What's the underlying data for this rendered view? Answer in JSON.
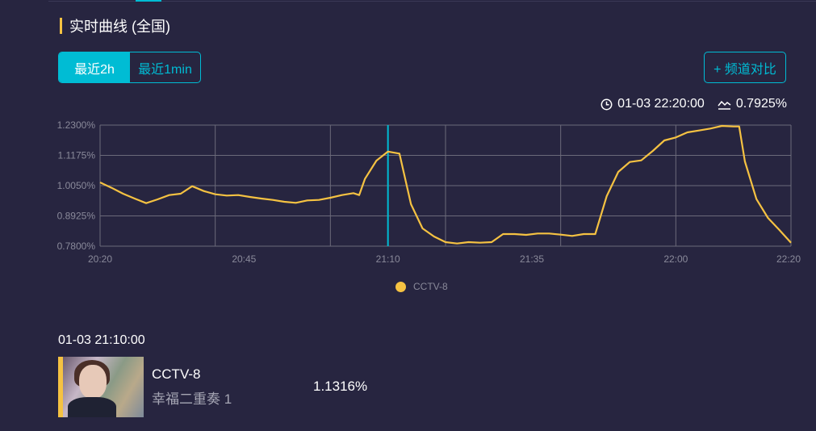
{
  "header": {
    "title": "实时曲线 (全国)"
  },
  "range_tabs": [
    {
      "label": "最近2h",
      "active": true
    },
    {
      "label": "最近1min",
      "active": false
    }
  ],
  "compare_button": "+ 频道对比",
  "current": {
    "time": "01-03 22:20:00",
    "value": "0.7925%"
  },
  "colors": {
    "accent": "#00bcd4",
    "series": "#f5c242",
    "background": "#272540"
  },
  "chart_data": {
    "type": "line",
    "x_unit": "time",
    "x_start": "20:20",
    "x_end": "22:20",
    "x_ticks": [
      "20:20",
      "20:45",
      "21:10",
      "21:35",
      "22:00",
      "22:20"
    ],
    "y_ticks": [
      "0.7800%",
      "0.8925%",
      "1.0050%",
      "1.1175%",
      "1.2300%"
    ],
    "ylim": [
      0.78,
      1.23
    ],
    "grid": true,
    "legend": "bottom-center",
    "cursor_time": "21:10",
    "series": [
      {
        "name": "CCTV-8",
        "points": [
          [
            "20:20",
            1.017
          ],
          [
            "20:22",
            0.997
          ],
          [
            "20:24",
            0.975
          ],
          [
            "20:26",
            0.957
          ],
          [
            "20:28",
            0.94
          ],
          [
            "20:30",
            0.954
          ],
          [
            "20:32",
            0.97
          ],
          [
            "20:34",
            0.975
          ],
          [
            "20:36",
            1.003
          ],
          [
            "20:38",
            0.985
          ],
          [
            "20:40",
            0.973
          ],
          [
            "20:42",
            0.968
          ],
          [
            "20:44",
            0.97
          ],
          [
            "20:46",
            0.963
          ],
          [
            "20:48",
            0.957
          ],
          [
            "20:50",
            0.952
          ],
          [
            "20:52",
            0.945
          ],
          [
            "20:54",
            0.941
          ],
          [
            "20:56",
            0.95
          ],
          [
            "20:58",
            0.952
          ],
          [
            "21:00",
            0.96
          ],
          [
            "21:02",
            0.97
          ],
          [
            "21:04",
            0.977
          ],
          [
            "21:05",
            0.97
          ],
          [
            "21:06",
            1.03
          ],
          [
            "21:08",
            1.098
          ],
          [
            "21:10",
            1.1316
          ],
          [
            "21:12",
            1.124
          ],
          [
            "21:14",
            0.936
          ],
          [
            "21:16",
            0.846
          ],
          [
            "21:18",
            0.816
          ],
          [
            "21:20",
            0.795
          ],
          [
            "21:22",
            0.79
          ],
          [
            "21:24",
            0.795
          ],
          [
            "21:26",
            0.793
          ],
          [
            "21:28",
            0.795
          ],
          [
            "21:30",
            0.825
          ],
          [
            "21:32",
            0.825
          ],
          [
            "21:34",
            0.822
          ],
          [
            "21:36",
            0.827
          ],
          [
            "21:38",
            0.827
          ],
          [
            "21:40",
            0.823
          ],
          [
            "21:42",
            0.818
          ],
          [
            "21:44",
            0.825
          ],
          [
            "21:46",
            0.825
          ],
          [
            "21:48",
            0.966
          ],
          [
            "21:50",
            1.056
          ],
          [
            "21:52",
            1.093
          ],
          [
            "21:54",
            1.099
          ],
          [
            "21:56",
            1.134
          ],
          [
            "21:58",
            1.173
          ],
          [
            "22:00",
            1.184
          ],
          [
            "22:02",
            1.203
          ],
          [
            "22:04",
            1.21
          ],
          [
            "22:06",
            1.217
          ],
          [
            "22:08",
            1.227
          ],
          [
            "22:10",
            1.225
          ],
          [
            "22:11",
            1.225
          ],
          [
            "22:12",
            1.095
          ],
          [
            "22:14",
            0.955
          ],
          [
            "22:16",
            0.885
          ],
          [
            "22:18",
            0.84
          ],
          [
            "22:20",
            0.7925
          ]
        ]
      }
    ]
  },
  "selected": {
    "time": "01-03 21:10:00",
    "channel": "CCTV-8",
    "program": "幸福二重奏 1",
    "value": "1.1316%"
  }
}
